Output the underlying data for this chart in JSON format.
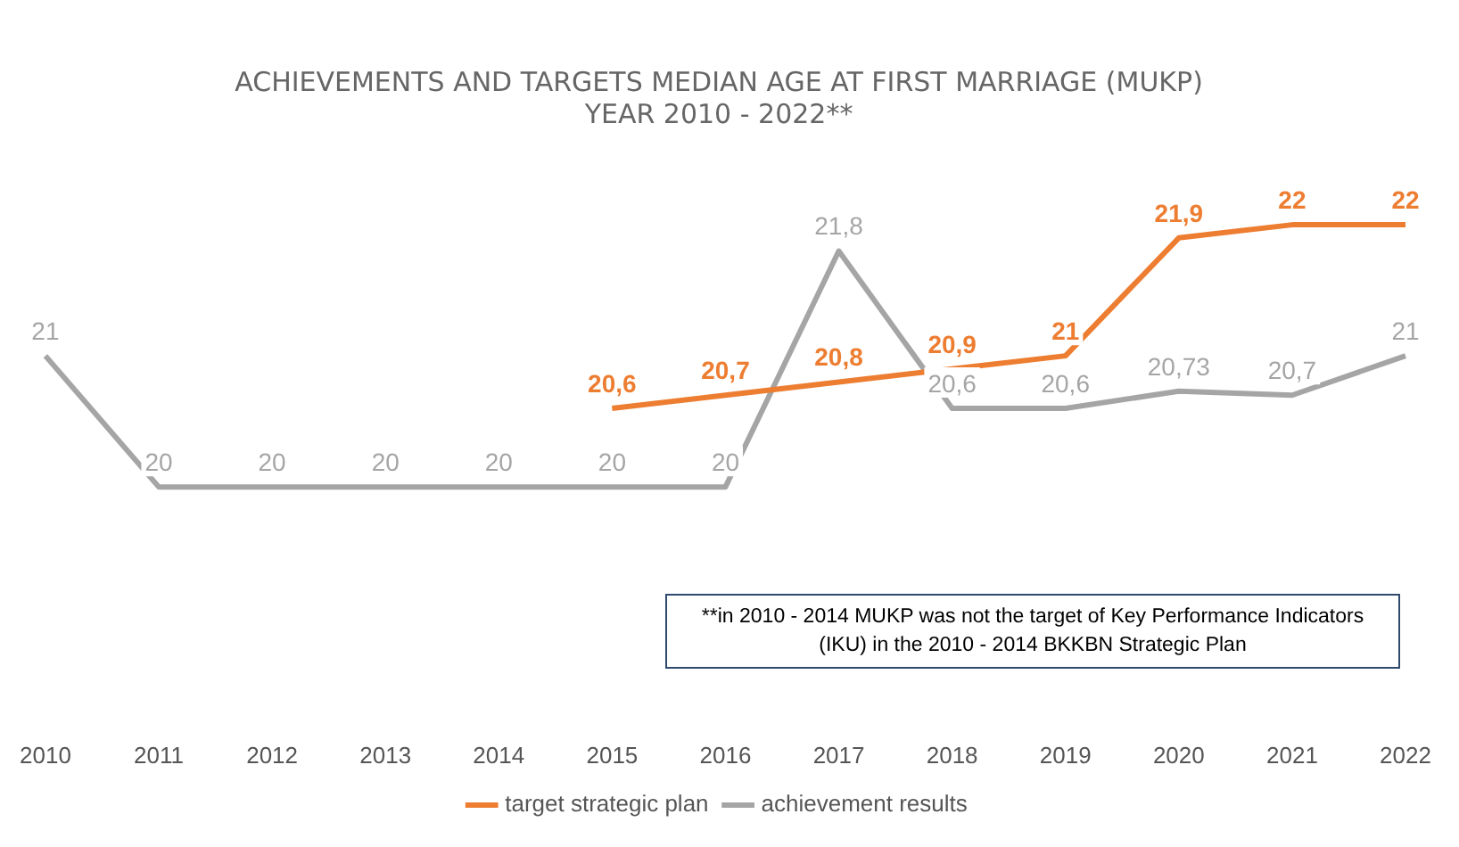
{
  "chart_data": {
    "type": "line",
    "title": "ACHIEVEMENTS AND TARGETS MEDIAN AGE AT FIRST MARRIAGE (MUKP)\nYEAR 2010 - 2022**",
    "categories": [
      "2010",
      "2011",
      "2012",
      "2013",
      "2014",
      "2015",
      "2016",
      "2017",
      "2018",
      "2019",
      "2020",
      "2021",
      "2022"
    ],
    "series": [
      {
        "name": "target strategic plan",
        "color": "#ed7d31",
        "values": [
          null,
          null,
          null,
          null,
          null,
          20.6,
          20.7,
          20.8,
          20.9,
          21,
          21.9,
          22,
          22
        ],
        "value_labels": [
          null,
          null,
          null,
          null,
          null,
          "20,6",
          "20,7",
          "20,8",
          "20,9",
          "21",
          "21,9",
          "22",
          "22"
        ]
      },
      {
        "name": "achievement results",
        "color": "#a5a5a5",
        "values": [
          21,
          20,
          20,
          20,
          20,
          20,
          20,
          21.8,
          20.6,
          20.6,
          20.73,
          20.7,
          21
        ],
        "value_labels": [
          "21",
          "20",
          "20",
          "20",
          "20",
          "20",
          "20",
          "21,8",
          "20,6",
          "20,6",
          "20,73",
          "20,7",
          "21"
        ]
      }
    ],
    "tick_labels": "x",
    "legend": "bottom",
    "grid": false,
    "marker": "none",
    "line_style": "solid",
    "annotations": [
      "**in 2010 - 2014 MUKP was not the target of Key Performance Indicators (IKU) in the 2010 - 2014 BKKBN Strategic Plan"
    ]
  }
}
